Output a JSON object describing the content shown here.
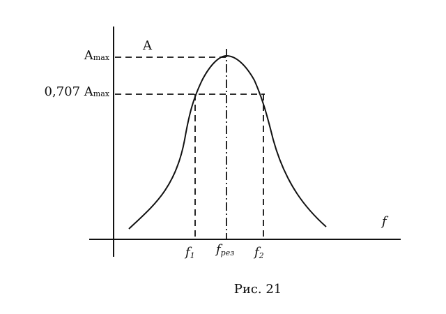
{
  "labels": {
    "y_axis": "A",
    "x_axis": "f",
    "a_max": {
      "main": "A",
      "sub": "max"
    },
    "a_707": {
      "main": "0,707 A",
      "sub": "max"
    },
    "f1": {
      "main": "f",
      "sub": "1"
    },
    "f_res": {
      "main": "f",
      "sub": "рез"
    },
    "f2": {
      "main": "f",
      "sub": "2"
    }
  },
  "caption": "Рис. 21"
}
